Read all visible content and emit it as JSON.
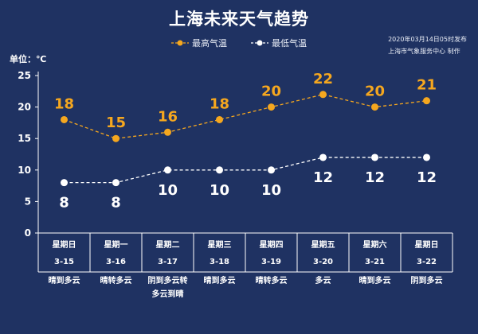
{
  "title": "上海未来天气趋势",
  "publish": {
    "line1": "2020年03月14日05时发布",
    "line2": "上海市气象服务中心  制作"
  },
  "unit_label": "单位：℃",
  "colors": {
    "high": "#f5a71f",
    "low": "#ffffff",
    "background": "#1f3262"
  },
  "chart_data": {
    "type": "line",
    "ylim": [
      0,
      25
    ],
    "yticks": [
      "0",
      "5",
      "10",
      "15",
      "20",
      "25"
    ],
    "days": [
      {
        "weekday": "星期日",
        "date": "3-15",
        "weather": [
          "晴到多云"
        ]
      },
      {
        "weekday": "星期一",
        "date": "3-16",
        "weather": [
          "晴转多云"
        ]
      },
      {
        "weekday": "星期二",
        "date": "3-17",
        "weather": [
          "阴到多云转",
          "多云到晴"
        ]
      },
      {
        "weekday": "星期三",
        "date": "3-18",
        "weather": [
          "晴到多云"
        ]
      },
      {
        "weekday": "星期四",
        "date": "3-19",
        "weather": [
          "晴转多云"
        ]
      },
      {
        "weekday": "星期五",
        "date": "3-20",
        "weather": [
          "多云"
        ]
      },
      {
        "weekday": "星期六",
        "date": "3-21",
        "weather": [
          "晴到多云"
        ]
      },
      {
        "weekday": "星期日",
        "date": "3-22",
        "weather": [
          "阴到多云"
        ]
      }
    ],
    "series": [
      {
        "name": "最高气温",
        "values": [
          18,
          15,
          16,
          18,
          20,
          22,
          20,
          21
        ]
      },
      {
        "name": "最低气温",
        "values": [
          8,
          8,
          10,
          10,
          10,
          12,
          12,
          12
        ]
      }
    ]
  }
}
